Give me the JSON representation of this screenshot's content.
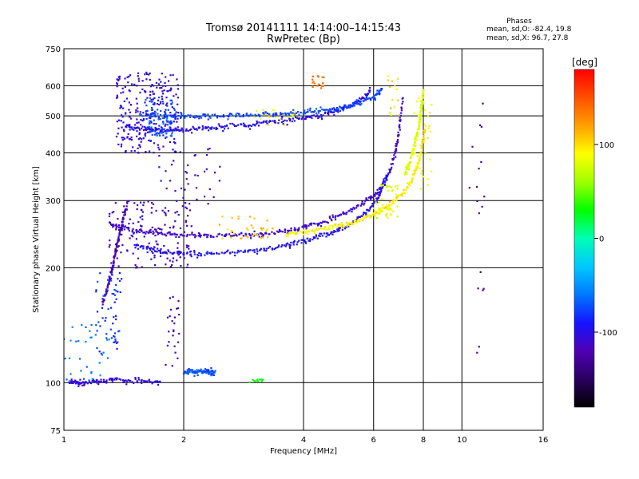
{
  "chart_data": {
    "type": "scatter",
    "title": "Tromsø 20141111 14:14:00–14:15:43",
    "subtitle": "RwPretec (Bp)",
    "stats_heading": "Phases",
    "stats_line1": "mean, sd,O: -82.4, 19.8",
    "stats_line2": "mean, sd,X:  96.7, 27.8",
    "xlabel": "Frequency [MHz]",
    "ylabel": "Stationary phase Virtual Height [km]",
    "x_scale": "log",
    "y_scale": "log",
    "xlim": [
      1,
      16
    ],
    "ylim": [
      75,
      750
    ],
    "x_ticks": [
      1,
      2,
      4,
      6,
      8,
      10,
      16
    ],
    "x_tick_labels": [
      "1",
      "2",
      "4",
      "6",
      "8",
      "10",
      "16"
    ],
    "y_ticks": [
      75,
      100,
      200,
      300,
      400,
      500,
      600,
      750
    ],
    "y_tick_labels": [
      "75",
      "100",
      "200",
      "300",
      "400",
      "500",
      "600",
      "750"
    ],
    "grid": true,
    "colorbar": {
      "unit": "[deg]",
      "range": [
        -180,
        180
      ],
      "ticks": [
        100,
        0,
        -100
      ],
      "tick_labels": [
        "100",
        "0",
        "-100"
      ],
      "colors": [
        "#000000",
        "#2a0060",
        "#5000b4",
        "#1414ff",
        "#0078ff",
        "#00c8ff",
        "#00ffb4",
        "#00ff00",
        "#a0ff00",
        "#ffff00",
        "#ffa000",
        "#ff5000",
        "#ff0000"
      ]
    },
    "traces": [
      {
        "name": "",
        "x": [
          1.42,
          1.6,
          1.8,
          2.0,
          2.3,
          2.7,
          3.2,
          3.8,
          4.4,
          5.0,
          5.5,
          5.9
        ],
        "y": [
          470,
          462,
          458,
          460,
          465,
          472,
          480,
          490,
          503,
          520,
          545,
          580
        ],
        "phase": -100
      },
      {
        "name": "",
        "x": [
          1.55,
          1.8,
          2.1,
          2.5,
          3.0,
          3.6,
          4.2,
          4.8,
          5.4,
          6.0,
          6.3
        ],
        "y": [
          505,
          500,
          498,
          500,
          504,
          508,
          512,
          520,
          535,
          560,
          590
        ],
        "phase": -75
      },
      {
        "name": "",
        "x": [
          1.3,
          1.45,
          1.7,
          2.0,
          2.4,
          2.9,
          3.4,
          4.0,
          4.6,
          5.2,
          5.8,
          6.2,
          6.6,
          6.9,
          7.1
        ],
        "y": [
          262,
          252,
          247,
          243,
          242,
          244,
          248,
          256,
          266,
          281,
          300,
          320,
          360,
          430,
          560
        ],
        "phase": -110
      },
      {
        "name": "",
        "x": [
          1.5,
          1.7,
          2.0,
          2.4,
          2.9,
          3.5,
          4.1,
          4.7,
          5.3,
          5.8,
          6.2,
          6.5
        ],
        "y": [
          230,
          222,
          218,
          218,
          221,
          227,
          236,
          247,
          262,
          282,
          310,
          350
        ],
        "phase": -95
      },
      {
        "name": "",
        "x": [
          3.6,
          4.2,
          4.8,
          5.4,
          6.0,
          6.6,
          7.2,
          7.6,
          7.9,
          8.1
        ],
        "y": [
          244,
          250,
          256,
          264,
          276,
          292,
          318,
          350,
          400,
          470
        ],
        "phase": 95
      },
      {
        "name": "",
        "x": [
          7.2,
          7.4,
          7.6,
          7.8,
          7.9,
          8.0
        ],
        "y": [
          350,
          380,
          420,
          470,
          520,
          580
        ],
        "phase": 80
      },
      {
        "name": "",
        "x": [
          1.25,
          1.3,
          1.33,
          1.36,
          1.4,
          1.45
        ],
        "y": [
          160,
          185,
          205,
          230,
          260,
          300
        ],
        "phase": -120
      },
      {
        "name": "",
        "x": [
          1.03,
          1.1,
          1.2,
          1.35,
          1.55,
          1.75
        ],
        "y": [
          100,
          100,
          101,
          102,
          101,
          100
        ],
        "phase": -105
      },
      {
        "name": "",
        "x": [
          2.0,
          2.1,
          2.2,
          2.3,
          2.4
        ],
        "y": [
          106,
          107,
          107,
          107,
          106
        ],
        "phase": -70
      }
    ],
    "clusters": [
      {
        "x": [
          1.35,
          1.95
        ],
        "y": [
          400,
          650
        ],
        "n": 260,
        "phase": -105
      },
      {
        "x": [
          1.6,
          1.9
        ],
        "y": [
          440,
          560
        ],
        "n": 80,
        "phase": -70
      },
      {
        "x": [
          1.3,
          2.1
        ],
        "y": [
          200,
          300
        ],
        "n": 150,
        "phase": -115
      },
      {
        "x": [
          1.7,
          2.6
        ],
        "y": [
          280,
          420
        ],
        "n": 40,
        "phase": -110
      },
      {
        "x": [
          1.2,
          1.4
        ],
        "y": [
          120,
          200
        ],
        "n": 60,
        "phase": -80
      },
      {
        "x": [
          1.0,
          1.3
        ],
        "y": [
          100,
          145
        ],
        "n": 35,
        "phase": -60
      },
      {
        "x": [
          1.8,
          1.95
        ],
        "y": [
          110,
          170
        ],
        "n": 25,
        "phase": -120
      },
      {
        "x": [
          2.4,
          3.4
        ],
        "y": [
          235,
          275
        ],
        "n": 35,
        "phase": 110
      },
      {
        "x": [
          2.9,
          3.2
        ],
        "y": [
          100,
          102
        ],
        "n": 12,
        "phase": 30
      },
      {
        "x": [
          4.2,
          4.5
        ],
        "y": [
          590,
          640
        ],
        "n": 18,
        "phase": 140
      },
      {
        "x": [
          6.0,
          6.9
        ],
        "y": [
          270,
          330
        ],
        "n": 45,
        "phase": 80
      },
      {
        "x": [
          7.5,
          8.4
        ],
        "y": [
          320,
          560
        ],
        "n": 40,
        "phase": 85
      },
      {
        "x": [
          6.5,
          7.0
        ],
        "y": [
          500,
          640
        ],
        "n": 14,
        "phase": 100
      },
      {
        "x": [
          10.4,
          11.5
        ],
        "y": [
          110,
          590
        ],
        "n": 18,
        "phase": -130
      },
      {
        "x": [
          3.0,
          3.9
        ],
        "y": [
          470,
          520
        ],
        "n": 18,
        "phase": 90
      }
    ]
  }
}
